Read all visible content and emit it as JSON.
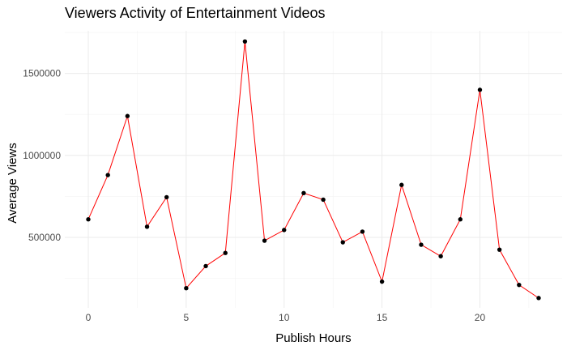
{
  "chart_data": {
    "type": "line",
    "title": "Viewers Activity of Entertainment Videos",
    "xlabel": "Publish Hours",
    "ylabel": "Average Views",
    "x": [
      0,
      1,
      2,
      3,
      4,
      5,
      6,
      7,
      8,
      9,
      10,
      11,
      12,
      13,
      14,
      15,
      16,
      17,
      18,
      19,
      20,
      21,
      22,
      23
    ],
    "series": [
      {
        "values": [
          610000,
          880000,
          1240000,
          565000,
          745000,
          190000,
          325000,
          405000,
          1695000,
          480000,
          545000,
          770000,
          730000,
          470000,
          535000,
          230000,
          820000,
          455000,
          385000,
          610000,
          1400000,
          425000,
          210000,
          130000
        ]
      }
    ],
    "xlim": [
      -1.2,
      24.2
    ],
    "ylim": [
      70000,
      1760000
    ],
    "x_ticks": [
      0,
      5,
      10,
      15,
      20
    ],
    "x_tick_labels": [
      "0",
      "5",
      "10",
      "15",
      "20"
    ],
    "y_ticks": [
      500000,
      1000000,
      1500000
    ],
    "y_tick_labels": [
      "500000",
      "1000000",
      "1500000"
    ],
    "grid": true,
    "legend": "none",
    "colors": {
      "line": "#ff0000",
      "point": "#000000",
      "grid": "#ebebeb"
    }
  }
}
